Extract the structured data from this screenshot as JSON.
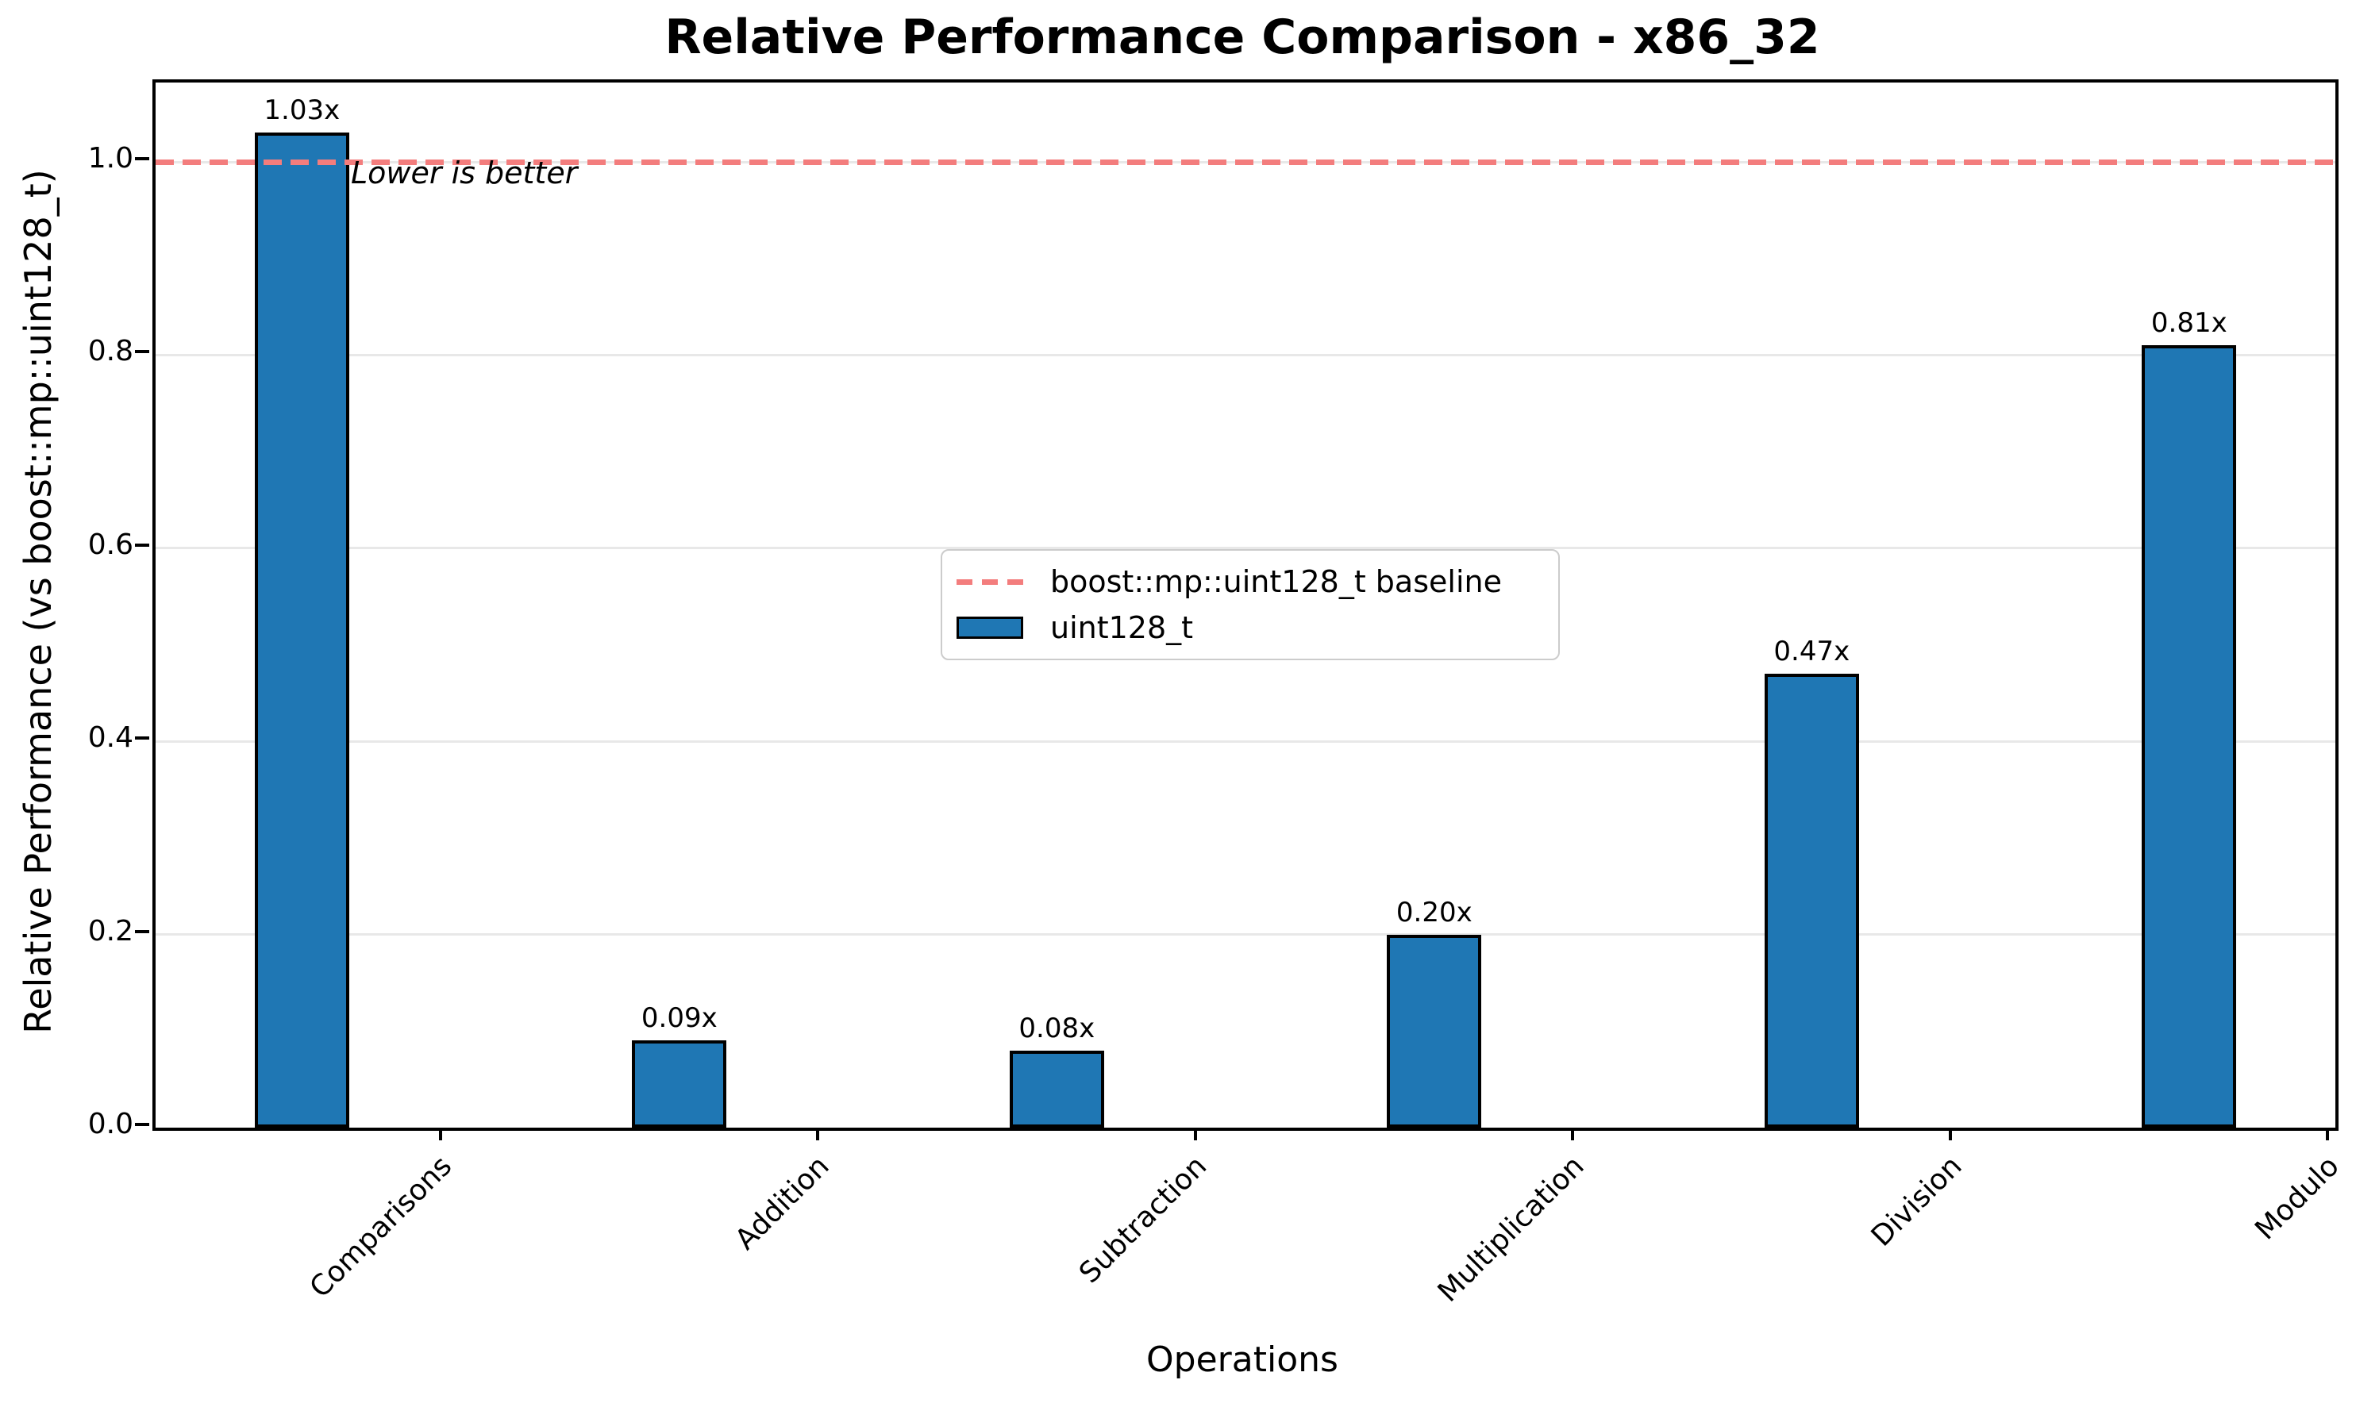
{
  "figure": {
    "title": "Relative Performance Comparison - x86_32",
    "annotation": "Lower is better",
    "xlabel": "Operations",
    "ylabel": "Relative Performance (vs boost::mp::uint128_t)"
  },
  "legend": {
    "baseline_label": "boost::mp::uint128_t baseline",
    "series_label": "uint128_t"
  },
  "colors": {
    "bar_fill": "#1f77b4",
    "bar_edge": "#000000",
    "baseline_red": "#f37d7d",
    "gridline": "#e8e8e8",
    "legend_border": "#cccccc",
    "text": "#000000"
  },
  "chart_data": {
    "type": "bar",
    "title": "Relative Performance Comparison - x86_32",
    "xlabel": "Operations",
    "ylabel": "Relative Performance (vs boost::mp::uint128_t)",
    "categories": [
      "Comparisons",
      "Addition",
      "Subtraction",
      "Multiplication",
      "Division",
      "Modulo"
    ],
    "series": [
      {
        "name": "uint128_t",
        "values": [
          1.03,
          0.09,
          0.08,
          0.2,
          0.47,
          0.81
        ]
      }
    ],
    "bar_labels": [
      "1.03x",
      "0.09x",
      "0.08x",
      "0.20x",
      "0.47x",
      "0.81x"
    ],
    "baseline": {
      "value": 1.0,
      "label": "boost::mp::uint128_t baseline"
    },
    "annotation": "Lower is better",
    "ylim": [
      0.0,
      1.083
    ],
    "ytick_labels": [
      "0.0",
      "0.2",
      "0.4",
      "0.6",
      "0.8",
      "1.0"
    ],
    "grid": true,
    "legend_position": "center"
  }
}
